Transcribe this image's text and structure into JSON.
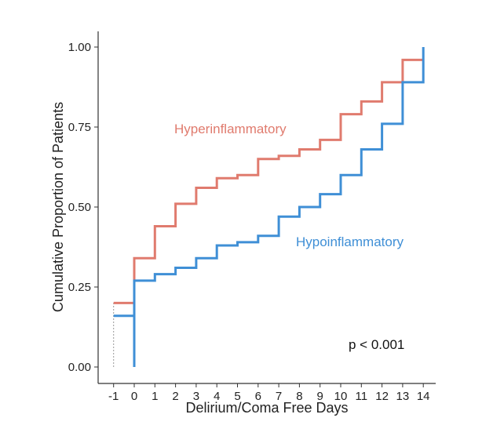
{
  "chart_data": {
    "type": "line",
    "step": true,
    "title": "",
    "xlabel": "Delirium/Coma Free Days",
    "ylabel": "Cumulative Proportion of Patients",
    "xlim": [
      -1,
      14
    ],
    "ylim": [
      0,
      1
    ],
    "x_ticks": [
      "-1",
      "0",
      "1",
      "2",
      "3",
      "4",
      "5",
      "6",
      "7",
      "8",
      "9",
      "10",
      "11",
      "12",
      "13",
      "14"
    ],
    "y_ticks": [
      "0.00",
      "0.25",
      "0.50",
      "0.75",
      "1.00"
    ],
    "grid": false,
    "annotation": "p < 0.001",
    "series": [
      {
        "name": "Hyperinflammatory",
        "color": "#e07b6e",
        "x": [
          -1,
          0,
          1,
          2,
          3,
          4,
          5,
          6,
          7,
          8,
          9,
          10,
          11,
          12,
          13,
          14
        ],
        "values": [
          0.2,
          0.34,
          0.44,
          0.51,
          0.56,
          0.59,
          0.6,
          0.65,
          0.66,
          0.68,
          0.71,
          0.79,
          0.83,
          0.89,
          0.96,
          0.96
        ]
      },
      {
        "name": "Hypoinflammatory",
        "color": "#3f8fd6",
        "x": [
          -1,
          0,
          1,
          2,
          3,
          4,
          5,
          6,
          7,
          8,
          9,
          10,
          11,
          12,
          13,
          14
        ],
        "values": [
          0.16,
          0.27,
          0.29,
          0.31,
          0.34,
          0.38,
          0.39,
          0.41,
          0.47,
          0.5,
          0.54,
          0.6,
          0.68,
          0.76,
          0.89,
          1.0
        ]
      }
    ]
  }
}
